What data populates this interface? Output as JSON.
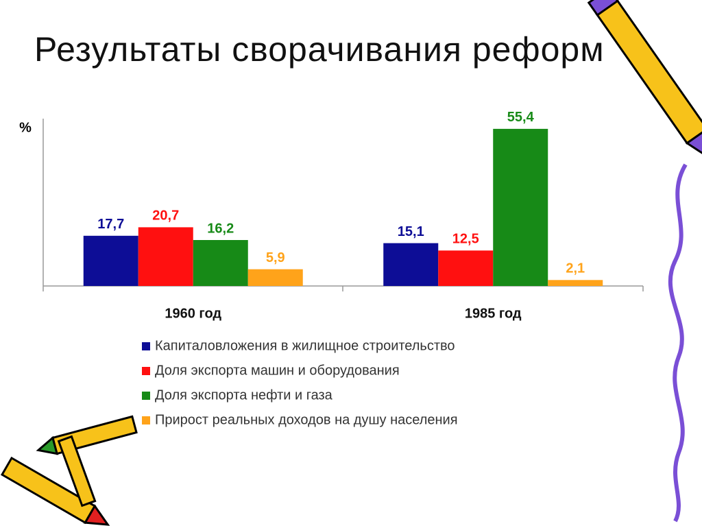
{
  "chart_data": {
    "type": "bar",
    "title": "Результаты сворачивания реформ",
    "y_label": "%",
    "categories": [
      "1960 год",
      "1985 год"
    ],
    "series": [
      {
        "name": "Капиталовложения в жилищное строительство",
        "color": "#0d0d96",
        "values": [
          17.7,
          15.1
        ],
        "value_labels": [
          "17,7",
          "15,1"
        ]
      },
      {
        "name": "Доля экспорта машин и оборудования",
        "color": "#ff1010",
        "values": [
          20.7,
          12.5
        ],
        "value_labels": [
          "20,7",
          "12,5"
        ]
      },
      {
        "name": "Доля экспорта нефти и газа",
        "color": "#178a17",
        "values": [
          16.2,
          55.4
        ],
        "value_labels": [
          "16,2",
          "55,4"
        ]
      },
      {
        "name": "Прирост реальных доходов на душу населения",
        "color": "#ffa31a",
        "values": [
          5.9,
          2.1
        ],
        "value_labels": [
          "5,9",
          "2,1"
        ]
      }
    ],
    "ylim": [
      0,
      59
    ]
  }
}
